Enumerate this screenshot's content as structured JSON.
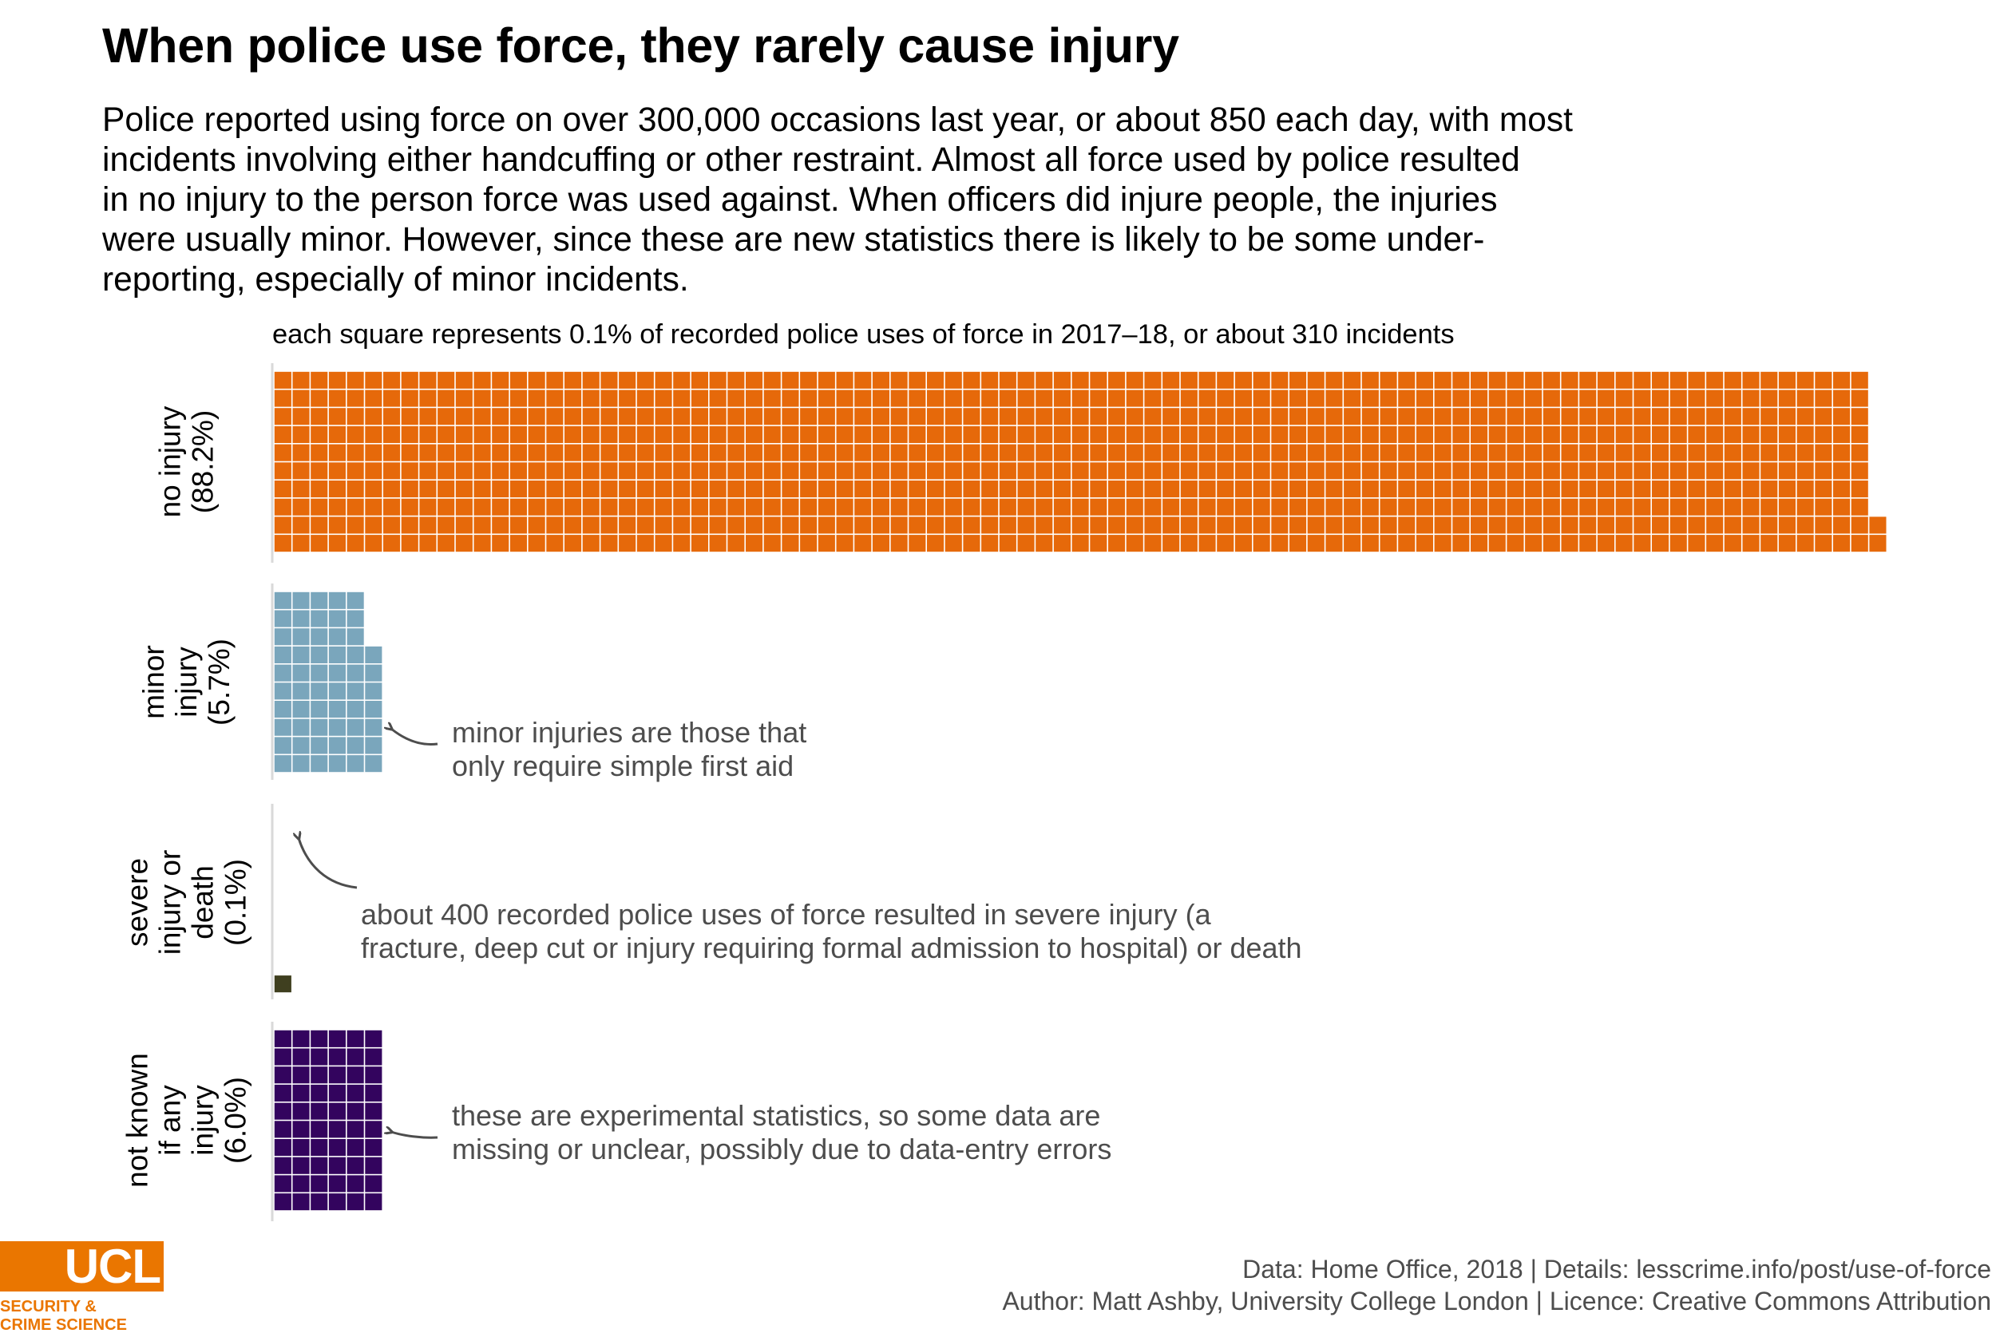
{
  "title": "When police use force, they rarely cause injury",
  "subtitle_lines": [
    "Police reported using force on over 300,000 occasions last year, or about 850 each day, with most",
    "incidents involving either handcuffing or other restraint. Almost all force used by police resulted",
    "in no injury to the person force was used against. When officers did injure people, the injuries",
    "were usually minor. However, since these are new statistics there is likely to be some under-",
    "reporting, especially of minor incidents."
  ],
  "chart_data": {
    "type": "waffle",
    "caption": "each square represents 0.1% of recorded police uses of force in 2017–18, or about 310 incidents",
    "unit_percent": 0.1,
    "rows_per_block": 10,
    "series": [
      {
        "name": "no injury",
        "label_lines": [
          "no injury",
          "(88.2%)"
        ],
        "percent": 88.2,
        "squares": 882,
        "color": "#e6690a",
        "annotation_lines": []
      },
      {
        "name": "minor injury",
        "label_lines": [
          "minor",
          "injury",
          "(5.7%)"
        ],
        "percent": 5.7,
        "squares": 57,
        "color": "#7aa6bc",
        "annotation_lines": [
          "minor injuries are those that",
          "only require simple first aid"
        ]
      },
      {
        "name": "severe injury or death",
        "label_lines": [
          "severe",
          "injury or",
          "death",
          "(0.1%)"
        ],
        "percent": 0.1,
        "squares": 1,
        "color": "#3f3f1f",
        "annotation_lines": [
          "about 400 recorded police uses of force resulted in severe injury (a",
          "fracture, deep cut or injury requiring formal admission to hospital) or death"
        ]
      },
      {
        "name": "not known if any injury",
        "label_lines": [
          "not known",
          "if any",
          "injury",
          "(6.0%)"
        ],
        "percent": 6.0,
        "squares": 60,
        "color": "#33045e",
        "annotation_lines": [
          "these are experimental statistics, so some data are",
          "missing or unclear, possibly due to data-entry errors"
        ]
      }
    ]
  },
  "footer": {
    "line1": "Data: Home Office, 2018 |  Details: lesscrime.info/post/use-of-force",
    "line2": "Author: Matt Ashby, University College London |  Licence: Creative Commons Attribution"
  },
  "logo": {
    "word": "UCL",
    "line1": "SECURITY &",
    "line2": "CRIME SCIENCE",
    "color": "#ea7600"
  }
}
